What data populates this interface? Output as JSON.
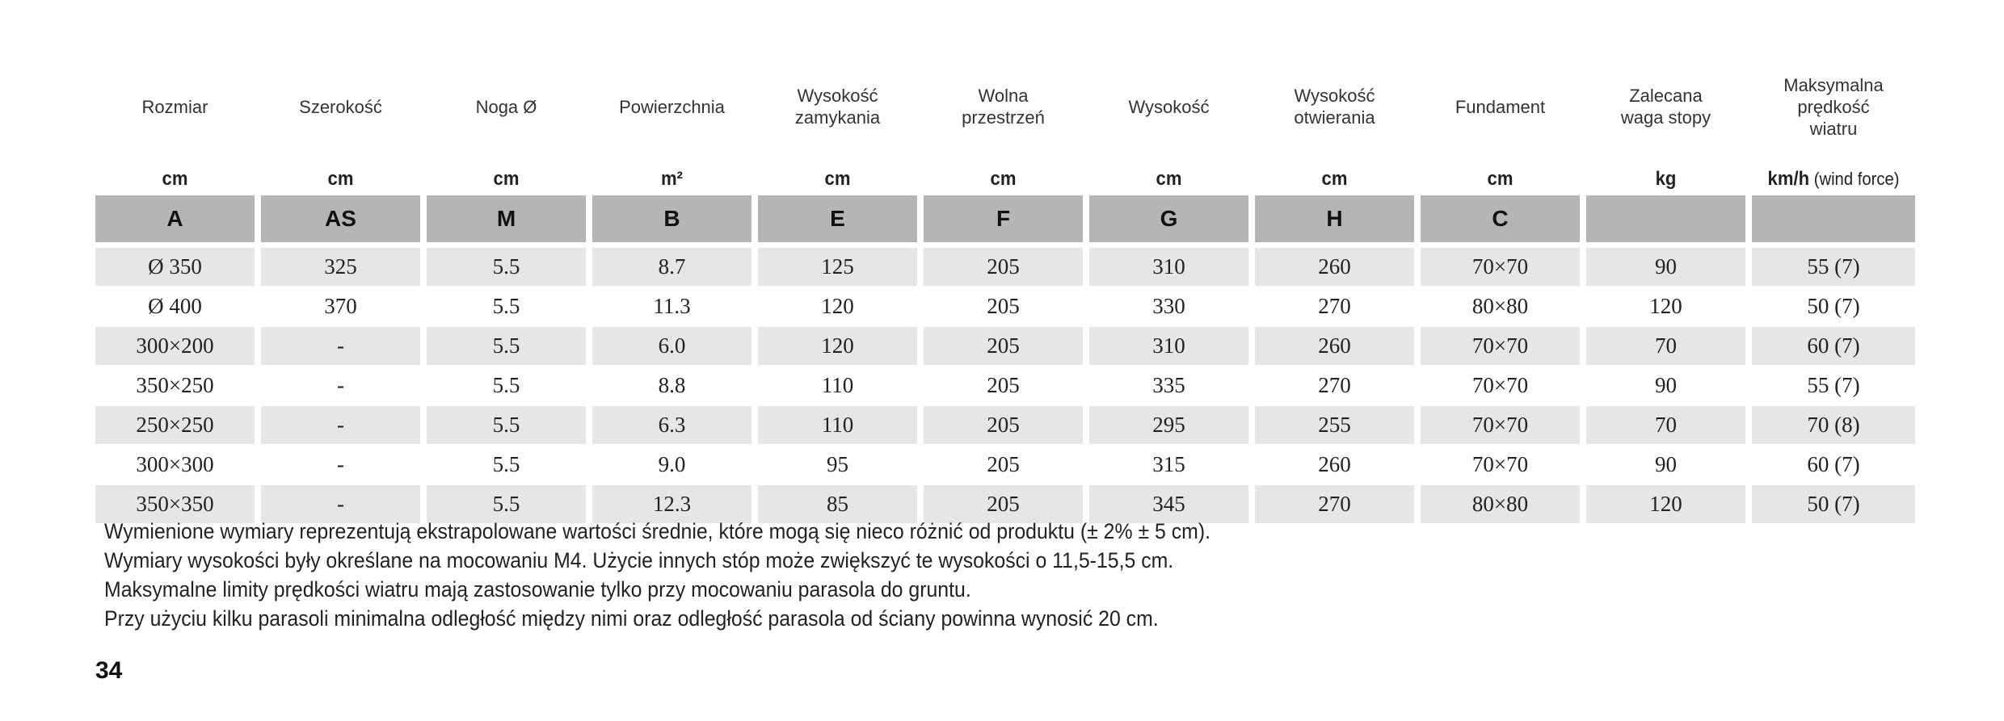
{
  "columns": [
    {
      "title": "Rozmiar",
      "unit": "cm",
      "unit_extra": "",
      "letter": "A"
    },
    {
      "title": "Szerokość",
      "unit": "cm",
      "unit_extra": "",
      "letter": "AS"
    },
    {
      "title": "Noga Ø",
      "unit": "cm",
      "unit_extra": "",
      "letter": "M"
    },
    {
      "title": "Powierzchnia",
      "unit": "m²",
      "unit_extra": "",
      "letter": "B"
    },
    {
      "title": "Wysokość\nzamykania",
      "unit": "cm",
      "unit_extra": "",
      "letter": "E"
    },
    {
      "title": "Wolna\nprzestrzeń",
      "unit": "cm",
      "unit_extra": "",
      "letter": "F"
    },
    {
      "title": "Wysokość",
      "unit": "cm",
      "unit_extra": "",
      "letter": "G"
    },
    {
      "title": "Wysokość\notwierania",
      "unit": "cm",
      "unit_extra": "",
      "letter": "H"
    },
    {
      "title": "Fundament",
      "unit": "cm",
      "unit_extra": "",
      "letter": "C"
    },
    {
      "title": "Zalecana\nwaga stopy",
      "unit": "kg",
      "unit_extra": "",
      "letter": ""
    },
    {
      "title": "Maksymalna\nprędkość\nwiatru",
      "unit": "km/h",
      "unit_extra": " (wind force)",
      "letter": ""
    }
  ],
  "rows": [
    [
      "Ø 350",
      "325",
      "5.5",
      "8.7",
      "125",
      "205",
      "310",
      "260",
      "70×70",
      "90",
      "55 (7)"
    ],
    [
      "Ø 400",
      "370",
      "5.5",
      "11.3",
      "120",
      "205",
      "330",
      "270",
      "80×80",
      "120",
      "50 (7)"
    ],
    [
      "300×200",
      "-",
      "5.5",
      "6.0",
      "120",
      "205",
      "310",
      "260",
      "70×70",
      "70",
      "60 (7)"
    ],
    [
      "350×250",
      "-",
      "5.5",
      "8.8",
      "110",
      "205",
      "335",
      "270",
      "70×70",
      "90",
      "55 (7)"
    ],
    [
      "250×250",
      "-",
      "5.5",
      "6.3",
      "110",
      "205",
      "295",
      "255",
      "70×70",
      "70",
      "70 (8)"
    ],
    [
      "300×300",
      "-",
      "5.5",
      "9.0",
      "95",
      "205",
      "315",
      "260",
      "70×70",
      "90",
      "60 (7)"
    ],
    [
      "350×350",
      "-",
      "5.5",
      "12.3",
      "85",
      "205",
      "345",
      "270",
      "80×80",
      "120",
      "50 (7)"
    ]
  ],
  "notes": [
    "Wymienione wymiary reprezentują ekstrapolowane wartości średnie, które mogą się nieco różnić od produktu (± 2% ± 5 cm).",
    "Wymiary wysokości były określane na mocowaniu M4. Użycie innych stóp może zwiększyć te wysokości o 11,5-15,5 cm.",
    "Maksymalne limity prędkości wiatru mają zastosowanie tylko przy mocowaniu parasola do gruntu.",
    "Przy użyciu kilku parasoli minimalna odległość między nimi oraz odległość parasola od ściany powinna wynosić 20 cm."
  ],
  "page_number": "34",
  "colors": {
    "header_band": "#b5b5b7",
    "row_shade": "#e6e6e7",
    "text": "#1a1a1a"
  }
}
